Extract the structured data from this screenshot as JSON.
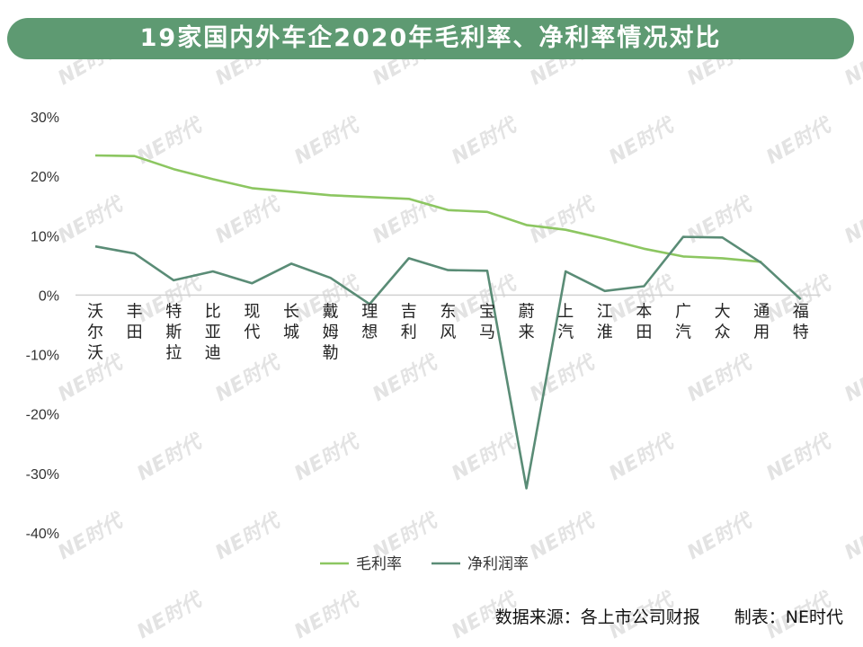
{
  "title": "19家国内外车企2020年毛利率、净利率情况对比",
  "source_note": "数据来源：各上市公司财报　　制表：NE时代",
  "watermark_text": "NE时代",
  "colors": {
    "title_bg": "#5e9a72",
    "gross": "#8cc661",
    "net": "#5a8c76",
    "axis": "#d0d0d0",
    "text": "#333333",
    "watermark": "#e3e3e3"
  },
  "chart_data": {
    "type": "line",
    "categories": [
      "沃尔沃",
      "丰田",
      "特斯拉",
      "比亚迪",
      "现代",
      "长城",
      "戴姆勒",
      "理想",
      "吉利",
      "东风",
      "宝马",
      "蔚来",
      "上汽",
      "江淮",
      "本田",
      "广汽",
      "大众",
      "通用",
      "福特"
    ],
    "series": [
      {
        "name": "毛利率",
        "values": [
          23.5,
          23.4,
          21.2,
          19.5,
          18.0,
          17.4,
          16.8,
          16.5,
          16.2,
          14.3,
          14.0,
          11.8,
          11.0,
          9.5,
          7.8,
          6.5,
          6.2,
          5.6,
          null
        ]
      },
      {
        "name": "净利润率",
        "values": [
          8.2,
          7.0,
          2.5,
          4.0,
          2.0,
          5.3,
          2.9,
          -1.5,
          6.2,
          4.2,
          4.1,
          -32.5,
          4.0,
          0.7,
          1.5,
          9.8,
          9.7,
          5.4,
          -0.7
        ]
      }
    ],
    "ylim": [
      -40,
      30
    ],
    "yticks": [
      30,
      20,
      10,
      0,
      -10,
      -20,
      -30,
      -40
    ],
    "ytick_labels": [
      "30%",
      "20%",
      "10%",
      "0%",
      "-10%",
      "-20%",
      "-30%",
      "-40%"
    ],
    "grid": false,
    "legend_position": "bottom-center"
  }
}
